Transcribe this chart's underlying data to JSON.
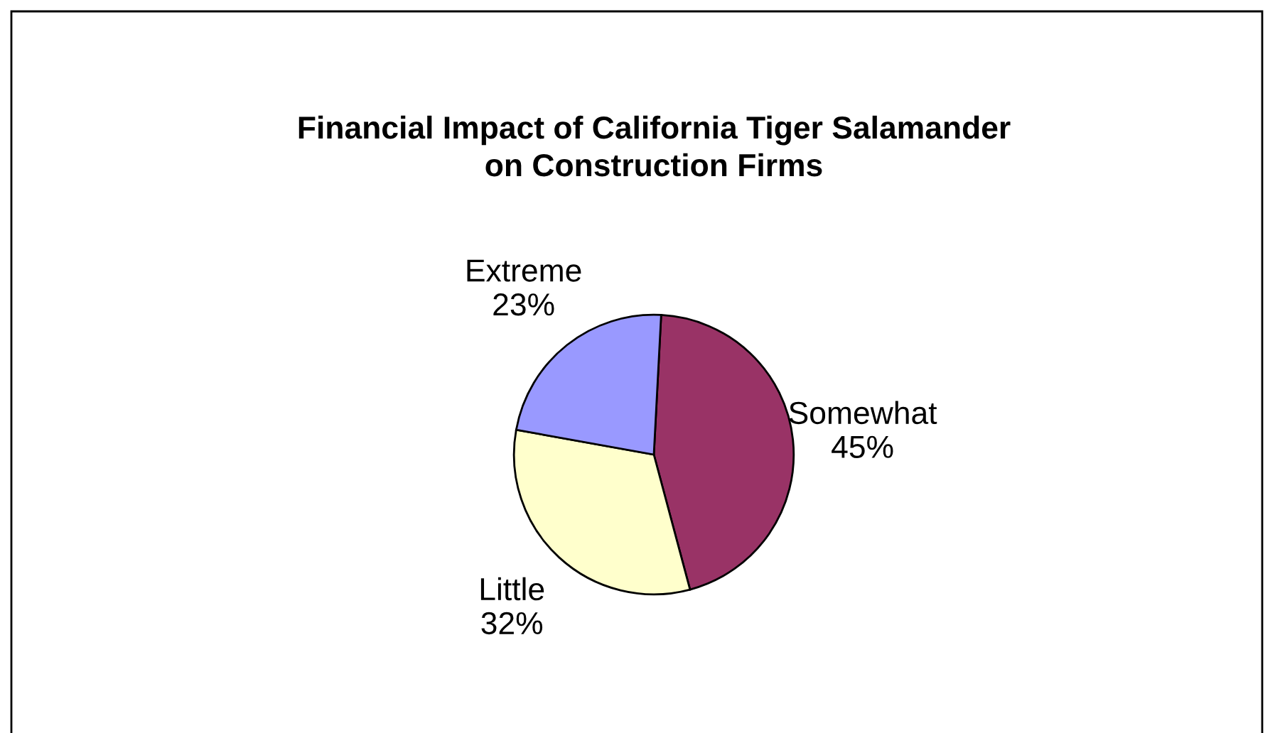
{
  "chart_data": {
    "type": "pie",
    "title": "Financial Impact of California Tiger Salamander\non Construction Firms",
    "categories": [
      "Somewhat",
      "Little",
      "Extreme"
    ],
    "values": [
      45,
      32,
      23
    ],
    "value_labels": [
      "45%",
      "32%",
      "23%"
    ],
    "colors": [
      "#993366",
      "#ffffcc",
      "#9999ff"
    ],
    "legend": false
  }
}
